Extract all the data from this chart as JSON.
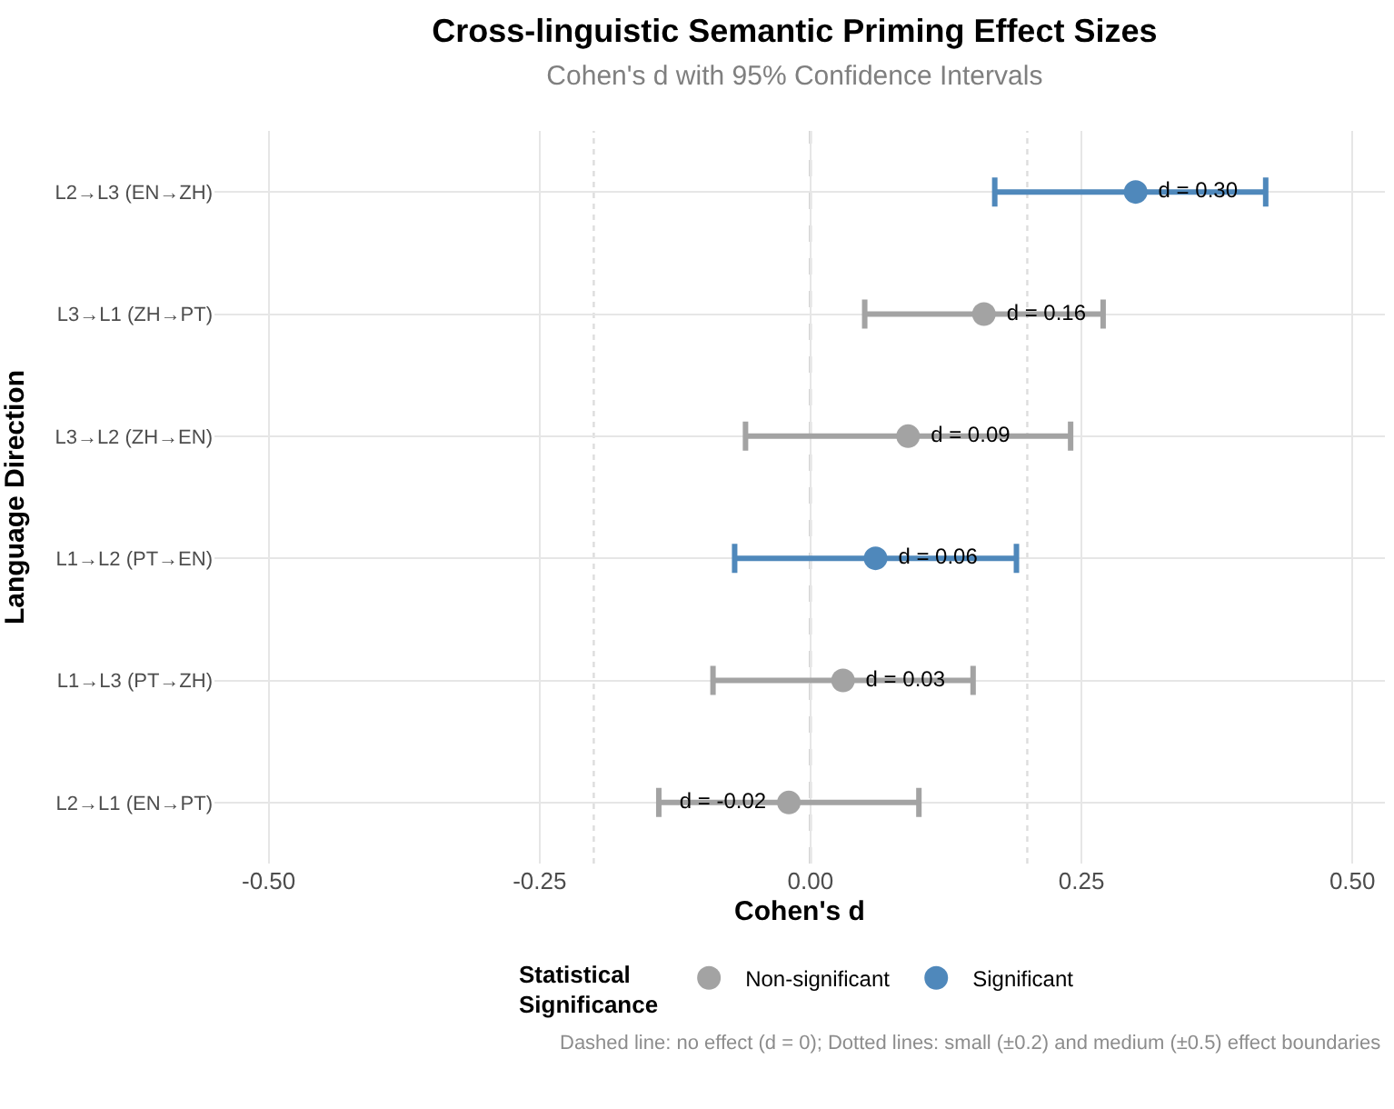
{
  "chart_data": {
    "type": "scatter",
    "orientation": "horizontal",
    "title": "Cross-linguistic Semantic Priming Effect Sizes",
    "subtitle": "Cohen's d with 95% Confidence Intervals",
    "xlabel": "Cohen's d",
    "ylabel": "Language Direction",
    "legend_title": "Statistical Significance",
    "categories": [
      "L2→L3 (EN→ZH)",
      "L3→L1 (ZH→PT)",
      "L3→L2 (ZH→EN)",
      "L1→L2 (PT→EN)",
      "L1→L3 (PT→ZH)",
      "L2→L1 (EN→PT)"
    ],
    "series": [
      {
        "name": "Non-significant",
        "color": "#a3a3a3",
        "values": [
          null,
          0.16,
          0.09,
          null,
          0.03,
          -0.02
        ],
        "errors": [
          null,
          [
            0.05,
            0.27
          ],
          [
            -0.06,
            0.24
          ],
          null,
          [
            -0.09,
            0.15
          ],
          [
            -0.14,
            0.1
          ]
        ],
        "value_labels": [
          null,
          "d = 0.16",
          "d = 0.09",
          null,
          "d = 0.03",
          "d = -0.02"
        ]
      },
      {
        "name": "Significant",
        "color": "#4f88bb",
        "values": [
          0.3,
          null,
          null,
          0.06,
          null,
          null
        ],
        "errors": [
          [
            0.17,
            0.42
          ],
          null,
          null,
          [
            -0.07,
            0.19
          ],
          null,
          null
        ],
        "value_labels": [
          "d = 0.30",
          null,
          null,
          "d = 0.06",
          null,
          null
        ]
      }
    ],
    "xlim": [
      -0.55,
      0.53
    ],
    "xticks": [
      {
        "value": -0.5,
        "label": "-0.50"
      },
      {
        "value": -0.25,
        "label": "-0.25"
      },
      {
        "value": 0,
        "label": "0.00"
      },
      {
        "value": 0.25,
        "label": "0.25"
      },
      {
        "value": 0.5,
        "label": "0.50"
      }
    ],
    "ref_lines": [
      {
        "axis": "x",
        "value": 0,
        "color": "#666666",
        "line_style": "dashed"
      },
      {
        "axis": "x",
        "value": -0.2,
        "color": "#dddddd",
        "line_style": "dotted"
      },
      {
        "axis": "x",
        "value": 0.2,
        "color": "#dddddd",
        "line_style": "dotted"
      }
    ],
    "annotations": [
      "Dashed line: no effect (d = 0); Dotted lines: small (±0.2) and medium (±0.5) effect boundaries"
    ],
    "grid": true,
    "legend": "bottom",
    "marker": "circle"
  }
}
